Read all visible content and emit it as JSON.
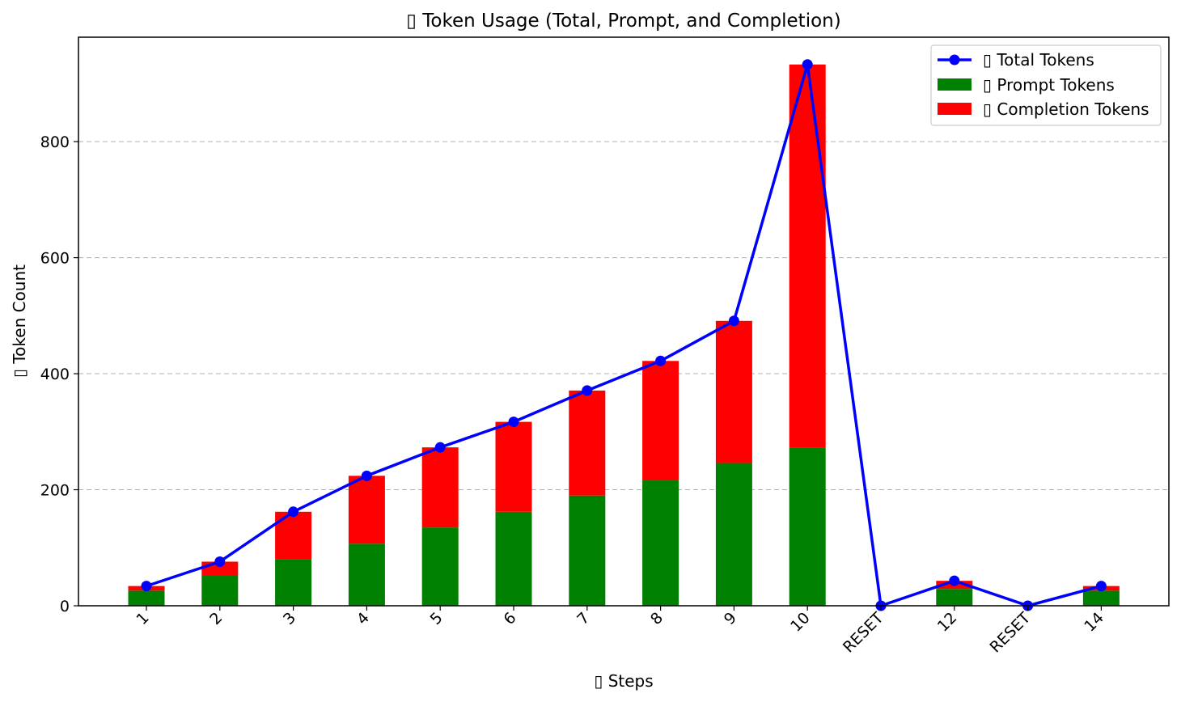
{
  "chart_data": {
    "type": "bar",
    "title": "▯ Token Usage (Total, Prompt, and Completion)",
    "xlabel": "▯ Steps",
    "ylabel": "▯ Token Count",
    "categories": [
      "1",
      "2",
      "3",
      "4",
      "5",
      "6",
      "7",
      "8",
      "9",
      "10",
      "RESET",
      "12",
      "RESET",
      "14"
    ],
    "series": [
      {
        "name": "▯ Prompt Tokens",
        "kind": "stacked-bar",
        "color": "#008000",
        "values": [
          26,
          53,
          80,
          107,
          135,
          162,
          190,
          216,
          246,
          272,
          0,
          29,
          0,
          26
        ]
      },
      {
        "name": "▯ Completion Tokens",
        "kind": "stacked-bar",
        "color": "#ff0000",
        "values": [
          8,
          23,
          82,
          117,
          138,
          155,
          181,
          206,
          245,
          661,
          0,
          14,
          0,
          8
        ]
      },
      {
        "name": "▯ Total Tokens",
        "kind": "line-marker",
        "color": "#0000ff",
        "values": [
          34,
          76,
          162,
          224,
          273,
          317,
          371,
          422,
          491,
          933,
          0,
          43,
          0,
          34
        ]
      }
    ],
    "ylim": [
      0,
      980
    ],
    "yticks": [
      0,
      200,
      400,
      600,
      800
    ],
    "grid": "y-dashed",
    "legend_position": "top-right"
  }
}
